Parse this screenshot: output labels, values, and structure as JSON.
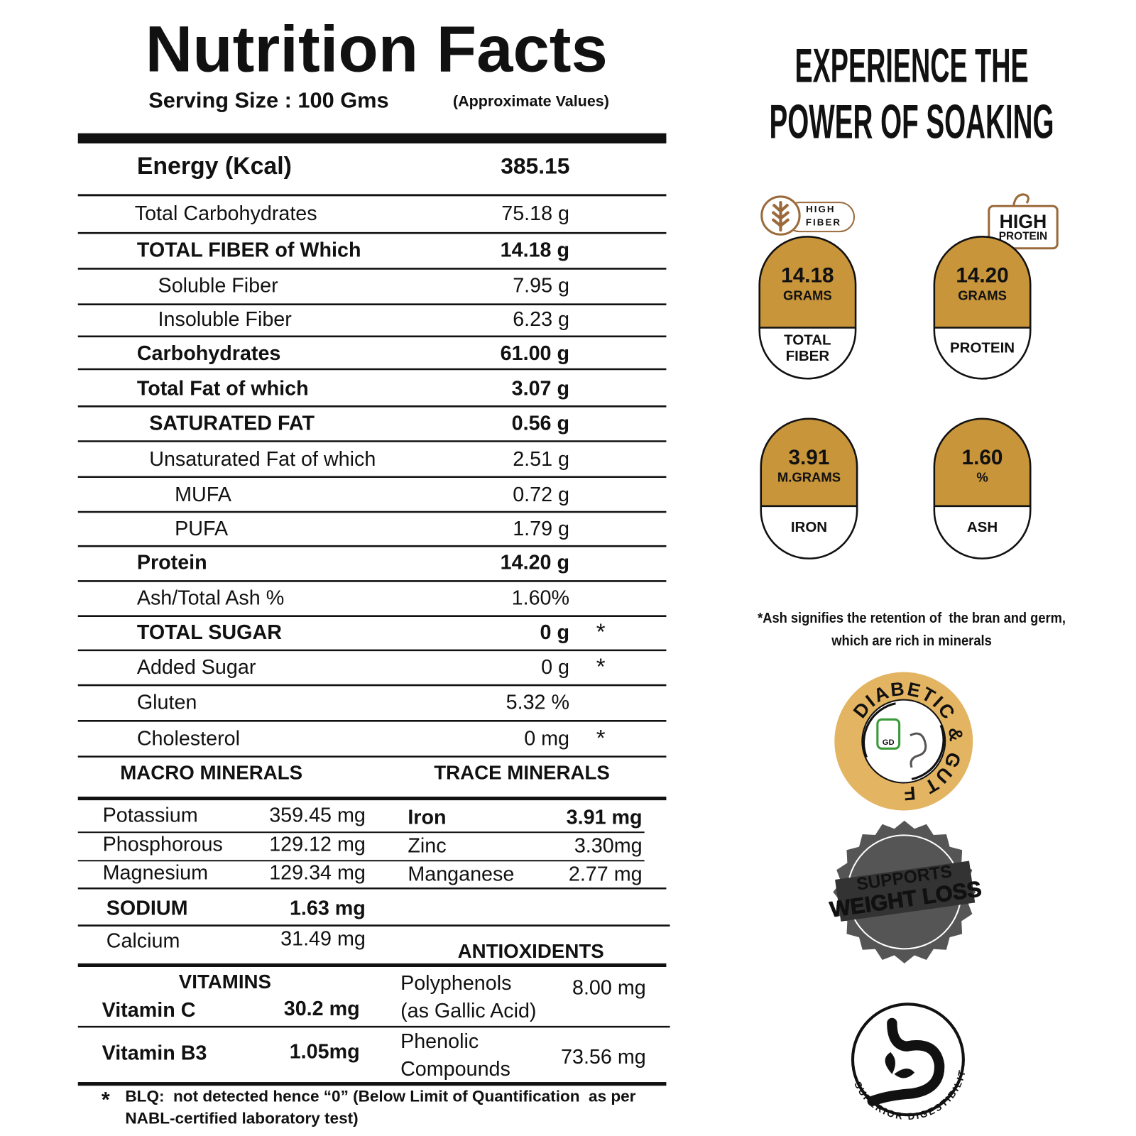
{
  "header": {
    "title": "Nutrition Facts",
    "serving_size": "Serving Size : 100 Gms",
    "note": "(Approximate Values)"
  },
  "energy": {
    "label": "Energy (Kcal)",
    "value": "385.15"
  },
  "nutrients": [
    {
      "label": "Total Carbohydrates",
      "value": "75.18 g"
    },
    {
      "label": "TOTAL FIBER of Which",
      "value": "14.18 g"
    },
    {
      "label": "Soluble Fiber",
      "value": "7.95 g"
    },
    {
      "label": "Insoluble Fiber",
      "value": "6.23 g"
    },
    {
      "label": "Carbohydrates",
      "value": "61.00 g"
    },
    {
      "label": "Total Fat of which",
      "value": "3.07 g"
    },
    {
      "label": "SATURATED FAT",
      "value": "0.56 g"
    },
    {
      "label": "Unsaturated Fat of which",
      "value": "2.51 g"
    },
    {
      "label": "MUFA",
      "value": "0.72 g"
    },
    {
      "label": "PUFA",
      "value": "1.79 g"
    },
    {
      "label": "Protein",
      "value": "14.20 g"
    },
    {
      "label": "Ash/Total Ash %",
      "value": "1.60%"
    },
    {
      "label": "TOTAL SUGAR",
      "value": "0 g",
      "mark": "*"
    },
    {
      "label": "Added Sugar",
      "value": "0 g",
      "mark": "*"
    },
    {
      "label": "Gluten",
      "value": "5.32 %"
    },
    {
      "label": "Cholesterol",
      "value": "0 mg",
      "mark": "*"
    }
  ],
  "minerals": {
    "macro_title": "MACRO MINERALS",
    "trace_title": "TRACE MINERALS",
    "macro": [
      [
        "Potassium",
        "359.45 mg"
      ],
      [
        "Phosphorous",
        "129.12 mg"
      ],
      [
        "Magnesium",
        "129.34 mg"
      ],
      [
        "SODIUM",
        "1.63 mg"
      ],
      [
        "Calcium",
        "31.49 mg"
      ]
    ],
    "trace": [
      [
        "Iron",
        "3.91 mg"
      ],
      [
        "Zinc",
        "3.30mg"
      ],
      [
        "Manganese",
        "2.77 mg"
      ]
    ]
  },
  "antioxidants": {
    "title": "ANTIOXIDENTS",
    "items": [
      {
        "label": [
          "Polyphenols",
          "(as Gallic Acid)"
        ],
        "value": "8.00 mg"
      },
      {
        "label": [
          "Phenolic",
          "Compounds"
        ],
        "value": "73.56 mg"
      }
    ]
  },
  "vitamins": {
    "title": "VITAMINS",
    "items": [
      [
        "Vitamin C",
        "30.2 mg"
      ],
      [
        "Vitamin B3",
        "1.05mg"
      ]
    ]
  },
  "footnote": {
    "mark": "*",
    "lines": [
      "BLQ:  not detected hence “0” (Below Limit of Quantification  as per",
      "NABL-certified laboratory test)"
    ]
  },
  "side": {
    "heading": [
      "EXPERIENCE THE",
      "POWER OF SOAKING"
    ],
    "badges": [
      [
        "HIGH",
        "FIBER"
      ],
      [
        "HIGH",
        "PROTEIN"
      ]
    ],
    "highlights": [
      {
        "value": "14.18",
        "unit": "GRAMS",
        "label": [
          "TOTAL",
          "FIBER"
        ]
      },
      {
        "value": "14.20",
        "unit": "GRAMS",
        "label": [
          "PROTEIN"
        ]
      },
      {
        "value": "3.91",
        "unit": "M.GRAMS",
        "label": [
          "IRON"
        ]
      },
      {
        "value": "1.60",
        "unit": "%",
        "label": [
          "ASH"
        ]
      }
    ],
    "ash_note": [
      "*Ash signifies the retention of  the bran and germ,",
      "which are rich in minerals"
    ],
    "emblems": {
      "diabetic": {
        "text": "DIABETIC & GUT FRIENDLY",
        "icon": "GD"
      },
      "weight": [
        "SUPPORTS",
        "WEIGHT LOSS"
      ],
      "digestion": "SUPERIOR DIGESTIBILITY"
    }
  }
}
